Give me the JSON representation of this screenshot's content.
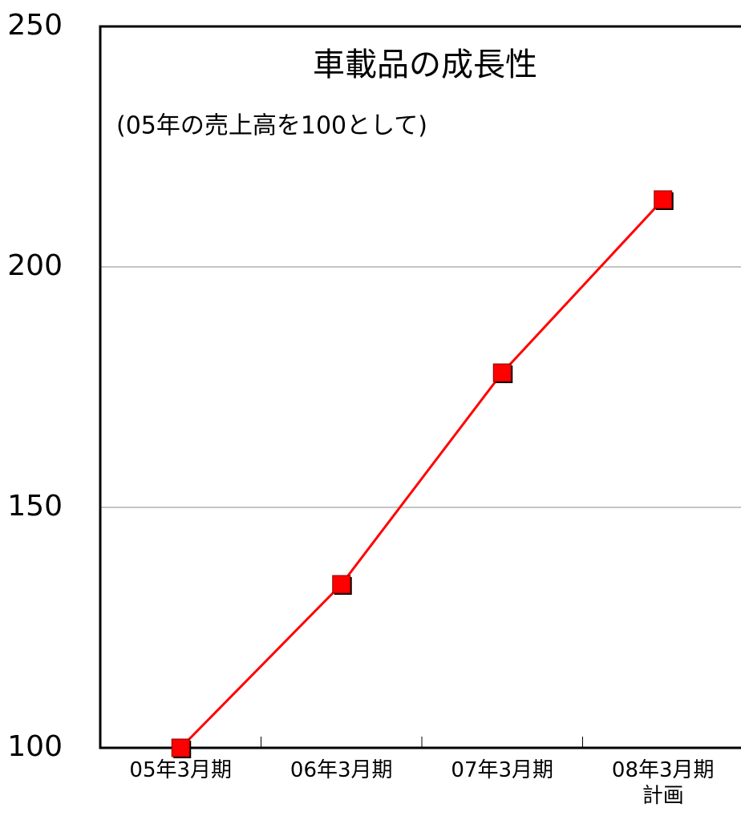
{
  "chart_data": {
    "type": "line",
    "title": "車載品の成長性",
    "subtitle": "(05年の売上高を100として)",
    "categories": [
      "05年3月期",
      "06年3月期",
      "07年3月期",
      "08年3月期\n計画"
    ],
    "series": [
      {
        "color": "#ff0000",
        "values": [
          100,
          134,
          178,
          214
        ]
      }
    ],
    "ylim": [
      100,
      250
    ],
    "yticks": [
      100,
      150,
      200,
      250
    ],
    "grid": true
  }
}
